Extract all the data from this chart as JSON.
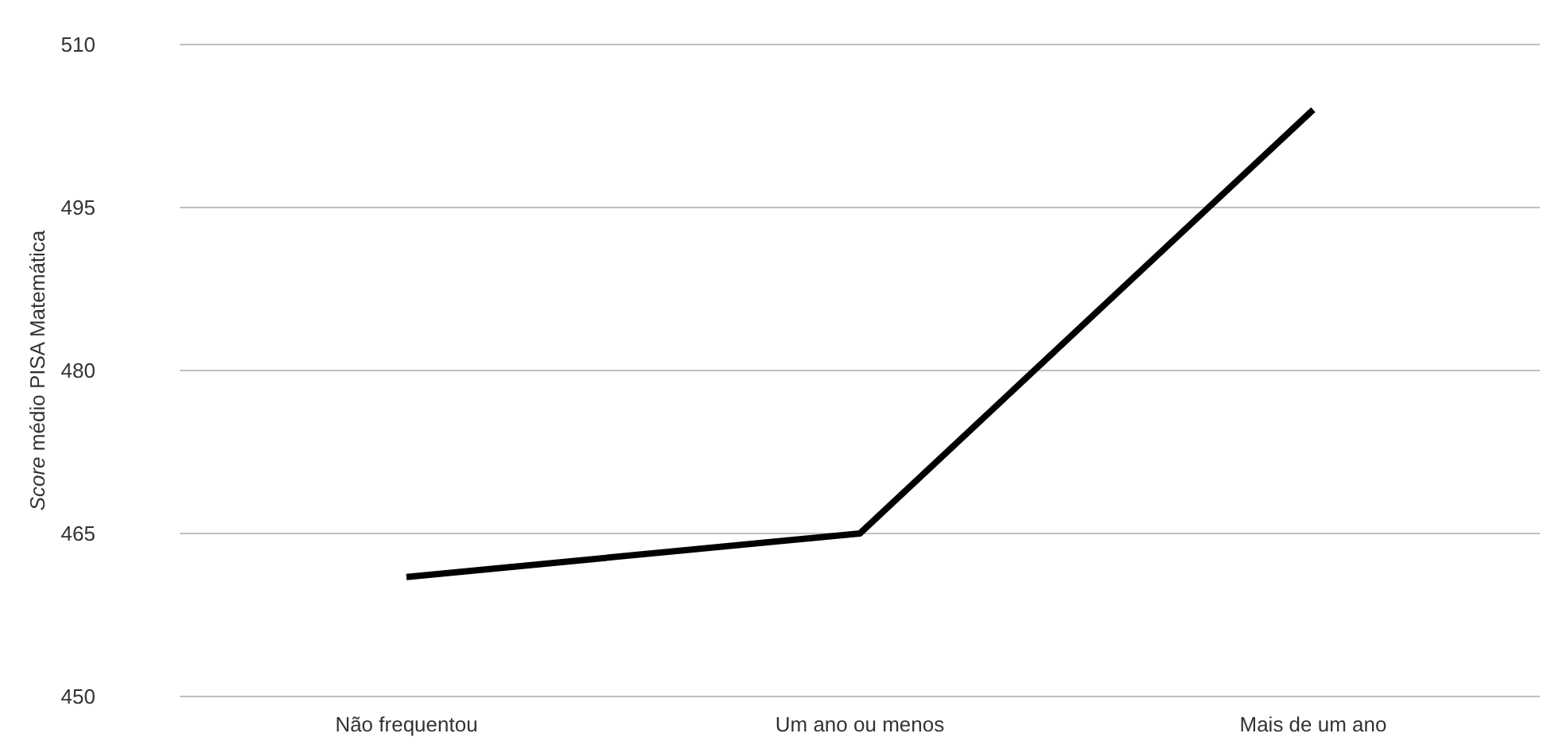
{
  "chart_data": {
    "type": "line",
    "ylabel": "Score médio PISA Matemática",
    "categories": [
      "Não frequentou",
      "Um ano ou menos",
      "Mais de um ano"
    ],
    "series": [
      {
        "color": "#000000",
        "values": [
          461,
          465,
          504
        ]
      }
    ],
    "ylim": [
      450,
      510
    ],
    "yticks": [
      450,
      465,
      480,
      495,
      510
    ],
    "grid": "y",
    "marker": "none",
    "line_style": "solid"
  }
}
